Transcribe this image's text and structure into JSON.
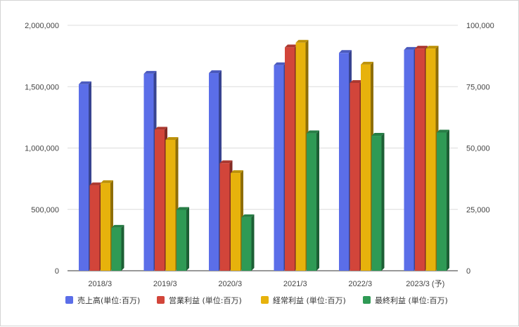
{
  "chart_data": {
    "type": "bar",
    "categories": [
      "2018/3",
      "2019/3",
      "2020/3",
      "2021/3",
      "2022/3",
      "2023/3 (予)"
    ],
    "series": [
      {
        "name": "売上高(単位:百万)",
        "axis": "left",
        "color": "#5b6ee8",
        "values": [
          1520000,
          1605000,
          1610000,
          1675000,
          1775000,
          1800000
        ]
      },
      {
        "name": "営業利益 (単位:百万)",
        "axis": "right",
        "color": "#d2453a",
        "values": [
          34800,
          57500,
          43800,
          91000,
          76500,
          90500
        ]
      },
      {
        "name": "経常利益 (単位:百万)",
        "axis": "right",
        "color": "#e7b20c",
        "values": [
          35700,
          53300,
          39800,
          92900,
          84000,
          90500
        ]
      },
      {
        "name": "最終利益 (単位:百万)",
        "axis": "right",
        "color": "#2f9a55",
        "values": [
          17500,
          24800,
          21800,
          56000,
          55000,
          56300
        ]
      }
    ],
    "left_axis": {
      "ticks": [
        "0",
        "500,000",
        "1,000,000",
        "1,500,000",
        "2,000,000"
      ],
      "ylim": [
        0,
        2000000
      ]
    },
    "right_axis": {
      "ticks": [
        "0",
        "25,000",
        "50,000",
        "75,000",
        "100,000"
      ],
      "ylim": [
        0,
        100000
      ]
    },
    "grid": true,
    "legend": "bottom",
    "style": "3d-bars"
  }
}
